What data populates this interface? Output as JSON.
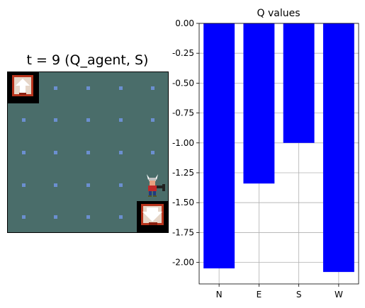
{
  "grid_view": {
    "title": "t = 9 (Q_agent, S)",
    "sprites": {
      "start_marker": "ladder-up-icon",
      "goal_marker": "ladder-down-icon",
      "agent": "viking-agent-icon"
    },
    "colors": {
      "floor": "#4a6d6a",
      "floor_dot": "#6b8fd0"
    }
  },
  "chart_data": {
    "type": "bar",
    "title": "Q values",
    "categories": [
      "N",
      "E",
      "S",
      "W"
    ],
    "values": [
      -2.05,
      -1.34,
      -1.0,
      -2.08
    ],
    "ylim": [
      -2.18,
      0.0
    ],
    "yticks": [
      "0.00",
      "-0.25",
      "-0.50",
      "-0.75",
      "-1.00",
      "-1.25",
      "-1.50",
      "-1.75",
      "-2.00"
    ],
    "grid": true,
    "bar_color": "#0000ff"
  }
}
